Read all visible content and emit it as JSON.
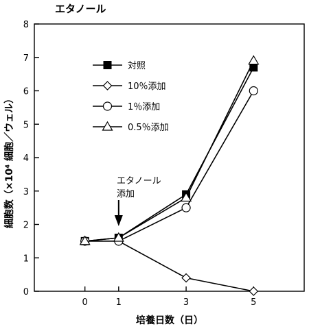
{
  "chart_data": {
    "type": "line",
    "title": "エタノール",
    "xlabel": "培養日数（日）",
    "ylabel": "細胞数（×10⁴ 細胞／ウェル）",
    "x": [
      0,
      1,
      3,
      5
    ],
    "x_tick_labels": [
      "0",
      "1",
      "3",
      "5"
    ],
    "xlim": [
      -1.5,
      6.5
    ],
    "ylim": [
      0,
      8
    ],
    "y_ticks": [
      0,
      1,
      2,
      3,
      4,
      5,
      6,
      7,
      8
    ],
    "grid": false,
    "legend_placement": "top-left",
    "series": [
      {
        "name": "対照",
        "marker": "filled-square",
        "values": [
          1.5,
          1.6,
          2.9,
          6.7
        ]
      },
      {
        "name": "10％添加",
        "marker": "open-diamond",
        "values": [
          1.5,
          1.5,
          0.4,
          0.0
        ]
      },
      {
        "name": "1％添加",
        "marker": "open-circle",
        "values": [
          1.5,
          1.5,
          2.5,
          6.0
        ]
      },
      {
        "name": "0.5％添加",
        "marker": "open-triangle",
        "values": [
          1.5,
          1.6,
          2.8,
          6.9
        ]
      }
    ],
    "annotation": {
      "lines": [
        "エタノール",
        "添加"
      ],
      "x": 1,
      "marker": "down-arrow"
    }
  }
}
